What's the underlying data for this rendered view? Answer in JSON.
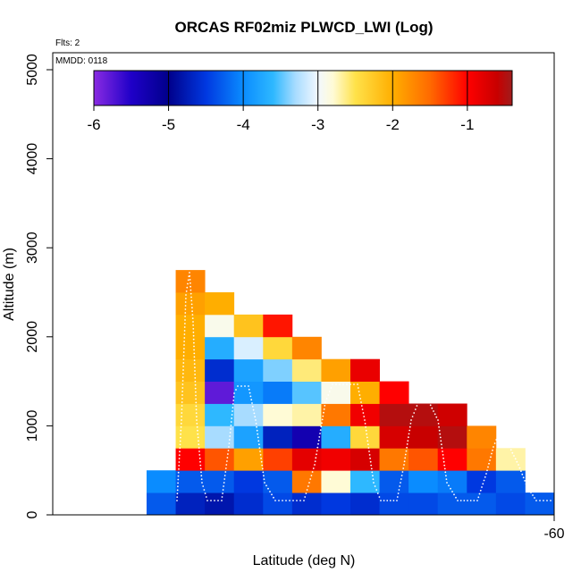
{
  "chart_data": {
    "type": "heatmap",
    "title": "ORCAS RF02miz PLWCD_LWI (Log)",
    "xlabel": "Latitude (deg N)",
    "ylabel": "Altitude (m)",
    "flights_note": "Flts: 2",
    "date_note": "MMDD: 0118",
    "x_ticks": [
      -60
    ],
    "x_tick_labels": [
      "-60"
    ],
    "y_ticks": [
      0,
      1000,
      2000,
      3000,
      4000,
      5000
    ],
    "y_tick_labels": [
      "0",
      "1000",
      "2000",
      "3000",
      "4000",
      "5000"
    ],
    "xlim": [
      -60.85,
      -60.0
    ],
    "ylim": [
      0,
      5200
    ],
    "cell_width_deg": 0.0535,
    "cell_height_m": 250,
    "colorbar": {
      "range": [
        -6,
        -0.4
      ],
      "ticks": [
        -6,
        -5,
        -4,
        -3,
        -2,
        -1
      ],
      "tick_labels": [
        "-6",
        "-5",
        "-4",
        "-3",
        "-2",
        "-1"
      ],
      "stops": [
        {
          "v": -6.0,
          "color": "#8a2be2"
        },
        {
          "v": -5.5,
          "color": "#1f00c8"
        },
        {
          "v": -5.0,
          "color": "#00008b"
        },
        {
          "v": -4.5,
          "color": "#0038e0"
        },
        {
          "v": -4.0,
          "color": "#0a8cff"
        },
        {
          "v": -3.6,
          "color": "#2eb8ff"
        },
        {
          "v": -3.3,
          "color": "#a8dcff"
        },
        {
          "v": -3.0,
          "color": "#f2f8ff"
        },
        {
          "v": -2.8,
          "color": "#fffbd6"
        },
        {
          "v": -2.5,
          "color": "#ffe24a"
        },
        {
          "v": -2.0,
          "color": "#ffae00"
        },
        {
          "v": -1.5,
          "color": "#ff6a00"
        },
        {
          "v": -1.0,
          "color": "#ff0000"
        },
        {
          "v": -0.6,
          "color": "#c80000"
        },
        {
          "v": -0.4,
          "color": "#a01c1c"
        }
      ]
    },
    "cells": [
      {
        "x": 0,
        "y": 0,
        "v": -4.3
      },
      {
        "x": 1,
        "y": 0,
        "v": -4.7
      },
      {
        "x": 2,
        "y": 0,
        "v": -4.8
      },
      {
        "x": 3,
        "y": 0,
        "v": -4.6
      },
      {
        "x": 4,
        "y": 0,
        "v": -4.4
      },
      {
        "x": 5,
        "y": 0,
        "v": -4.6
      },
      {
        "x": 6,
        "y": 0,
        "v": -4.5
      },
      {
        "x": 7,
        "y": 0,
        "v": -4.6
      },
      {
        "x": 8,
        "y": 0,
        "v": -4.4
      },
      {
        "x": 9,
        "y": 0,
        "v": -4.4
      },
      {
        "x": 10,
        "y": 0,
        "v": -4.3
      },
      {
        "x": 11,
        "y": 0,
        "v": -4.3
      },
      {
        "x": 12,
        "y": 0,
        "v": -4.4
      },
      {
        "x": 13,
        "y": 0,
        "v": -4.3
      },
      {
        "x": 0,
        "y": 1,
        "v": -4.0
      },
      {
        "x": 1,
        "y": 1,
        "v": -4.3
      },
      {
        "x": 2,
        "y": 1,
        "v": -4.3
      },
      {
        "x": 3,
        "y": 1,
        "v": -4.5
      },
      {
        "x": 4,
        "y": 1,
        "v": -4.3
      },
      {
        "x": 5,
        "y": 1,
        "v": -1.6
      },
      {
        "x": 6,
        "y": 1,
        "v": -2.8
      },
      {
        "x": 7,
        "y": 1,
        "v": -3.6
      },
      {
        "x": 8,
        "y": 1,
        "v": -4.3
      },
      {
        "x": 9,
        "y": 1,
        "v": -4.0
      },
      {
        "x": 10,
        "y": 1,
        "v": -4.1
      },
      {
        "x": 11,
        "y": 1,
        "v": -4.5
      },
      {
        "x": 12,
        "y": 1,
        "v": -4.3
      },
      {
        "x": 1,
        "y": 2,
        "v": -1.0
      },
      {
        "x": 2,
        "y": 2,
        "v": -1.4
      },
      {
        "x": 3,
        "y": 2,
        "v": -1.9
      },
      {
        "x": 4,
        "y": 2,
        "v": -1.3
      },
      {
        "x": 5,
        "y": 2,
        "v": -0.8
      },
      {
        "x": 6,
        "y": 2,
        "v": -0.9
      },
      {
        "x": 7,
        "y": 2,
        "v": -0.7
      },
      {
        "x": 8,
        "y": 2,
        "v": -1.6
      },
      {
        "x": 9,
        "y": 2,
        "v": -1.4
      },
      {
        "x": 10,
        "y": 2,
        "v": -1.0
      },
      {
        "x": 11,
        "y": 2,
        "v": -1.6
      },
      {
        "x": 12,
        "y": 2,
        "v": -2.7
      },
      {
        "x": 1,
        "y": 3,
        "v": -2.5
      },
      {
        "x": 2,
        "y": 3,
        "v": -3.3
      },
      {
        "x": 3,
        "y": 3,
        "v": -3.8
      },
      {
        "x": 4,
        "y": 3,
        "v": -4.7
      },
      {
        "x": 5,
        "y": 3,
        "v": -5.3
      },
      {
        "x": 6,
        "y": 3,
        "v": -3.7
      },
      {
        "x": 7,
        "y": 3,
        "v": -2.4
      },
      {
        "x": 8,
        "y": 3,
        "v": -0.7
      },
      {
        "x": 9,
        "y": 3,
        "v": -0.6
      },
      {
        "x": 10,
        "y": 3,
        "v": -0.5
      },
      {
        "x": 11,
        "y": 3,
        "v": -1.7
      },
      {
        "x": 1,
        "y": 4,
        "v": -2.4
      },
      {
        "x": 2,
        "y": 4,
        "v": -3.6
      },
      {
        "x": 3,
        "y": 4,
        "v": -3.3
      },
      {
        "x": 4,
        "y": 4,
        "v": -2.8
      },
      {
        "x": 5,
        "y": 4,
        "v": -2.7
      },
      {
        "x": 6,
        "y": 4,
        "v": -1.6
      },
      {
        "x": 7,
        "y": 4,
        "v": -0.9
      },
      {
        "x": 8,
        "y": 4,
        "v": -0.5
      },
      {
        "x": 9,
        "y": 4,
        "v": -0.5
      },
      {
        "x": 10,
        "y": 4,
        "v": -0.65
      },
      {
        "x": 1,
        "y": 5,
        "v": -2.2
      },
      {
        "x": 2,
        "y": 5,
        "v": -5.8
      },
      {
        "x": 3,
        "y": 5,
        "v": -3.9
      },
      {
        "x": 4,
        "y": 5,
        "v": -4.1
      },
      {
        "x": 5,
        "y": 5,
        "v": -3.5
      },
      {
        "x": 6,
        "y": 5,
        "v": -2.9
      },
      {
        "x": 7,
        "y": 5,
        "v": -2.0
      },
      {
        "x": 8,
        "y": 5,
        "v": -1.0
      },
      {
        "x": 1,
        "y": 6,
        "v": -2.1
      },
      {
        "x": 2,
        "y": 6,
        "v": -4.6
      },
      {
        "x": 3,
        "y": 6,
        "v": -3.8
      },
      {
        "x": 4,
        "y": 6,
        "v": -3.4
      },
      {
        "x": 5,
        "y": 6,
        "v": -2.6
      },
      {
        "x": 6,
        "y": 6,
        "v": -1.9
      },
      {
        "x": 7,
        "y": 6,
        "v": -0.85
      },
      {
        "x": 1,
        "y": 7,
        "v": -2.0
      },
      {
        "x": 2,
        "y": 7,
        "v": -3.7
      },
      {
        "x": 3,
        "y": 7,
        "v": -3.1
      },
      {
        "x": 4,
        "y": 7,
        "v": -2.4
      },
      {
        "x": 5,
        "y": 7,
        "v": -1.7
      },
      {
        "x": 1,
        "y": 8,
        "v": -2.0
      },
      {
        "x": 2,
        "y": 8,
        "v": -2.9
      },
      {
        "x": 3,
        "y": 8,
        "v": -2.2
      },
      {
        "x": 4,
        "y": 8,
        "v": -1.1
      },
      {
        "x": 1,
        "y": 9,
        "v": -1.9
      },
      {
        "x": 2,
        "y": 9,
        "v": -2.0
      },
      {
        "x": 1,
        "y": 10,
        "v": -1.7
      }
    ]
  }
}
